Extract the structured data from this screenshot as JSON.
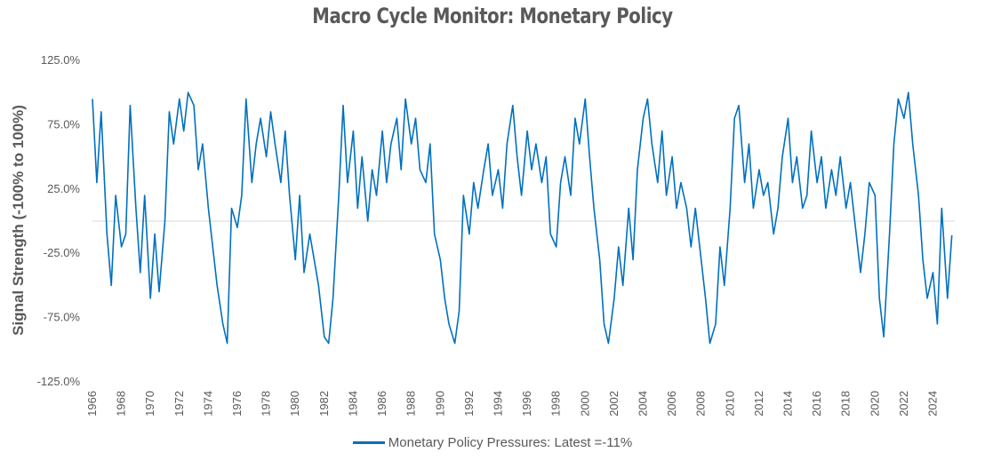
{
  "chart_data": {
    "type": "line",
    "title": "Macro Cycle Monitor: Monetary Policy",
    "ylabel": "Signal Strength (-100% to 100%)",
    "xlabel": "",
    "ylim": [
      -125,
      125
    ],
    "xlim": [
      1966,
      2025.5
    ],
    "yticks": [
      "125.0%",
      "75.0%",
      "25.0%",
      "-25.0%",
      "-75.0%",
      "-125.0%"
    ],
    "ytick_values": [
      125,
      75,
      25,
      -25,
      -75,
      -125
    ],
    "xticks": [
      "1966",
      "1968",
      "1970",
      "1972",
      "1974",
      "1976",
      "1978",
      "1980",
      "1982",
      "1984",
      "1986",
      "1988",
      "1990",
      "1992",
      "1994",
      "1996",
      "1998",
      "2000",
      "2002",
      "2004",
      "2006",
      "2008",
      "2010",
      "2012",
      "2014",
      "2016",
      "2018",
      "2020",
      "2022",
      "2024"
    ],
    "grid": false,
    "legend_position": "bottom",
    "series": [
      {
        "name": "Monetary Policy Pressures: Latest =-11%",
        "color": "#0070C0",
        "points": [
          [
            1966.0,
            95
          ],
          [
            1966.3,
            30
          ],
          [
            1966.6,
            85
          ],
          [
            1967.0,
            -10
          ],
          [
            1967.3,
            -50
          ],
          [
            1967.6,
            20
          ],
          [
            1968.0,
            -20
          ],
          [
            1968.3,
            -10
          ],
          [
            1968.6,
            90
          ],
          [
            1969.0,
            10
          ],
          [
            1969.3,
            -40
          ],
          [
            1969.6,
            20
          ],
          [
            1970.0,
            -60
          ],
          [
            1970.3,
            -10
          ],
          [
            1970.6,
            -55
          ],
          [
            1971.0,
            0
          ],
          [
            1971.3,
            85
          ],
          [
            1971.6,
            60
          ],
          [
            1972.0,
            95
          ],
          [
            1972.3,
            70
          ],
          [
            1972.6,
            100
          ],
          [
            1973.0,
            90
          ],
          [
            1973.3,
            40
          ],
          [
            1973.6,
            60
          ],
          [
            1974.0,
            10
          ],
          [
            1974.3,
            -20
          ],
          [
            1974.6,
            -50
          ],
          [
            1975.0,
            -80
          ],
          [
            1975.3,
            -95
          ],
          [
            1975.6,
            10
          ],
          [
            1976.0,
            -5
          ],
          [
            1976.3,
            20
          ],
          [
            1976.6,
            95
          ],
          [
            1977.0,
            30
          ],
          [
            1977.3,
            60
          ],
          [
            1977.6,
            80
          ],
          [
            1978.0,
            50
          ],
          [
            1978.3,
            85
          ],
          [
            1978.6,
            60
          ],
          [
            1979.0,
            30
          ],
          [
            1979.3,
            70
          ],
          [
            1979.6,
            20
          ],
          [
            1980.0,
            -30
          ],
          [
            1980.3,
            20
          ],
          [
            1980.6,
            -40
          ],
          [
            1981.0,
            -10
          ],
          [
            1981.3,
            -30
          ],
          [
            1981.6,
            -50
          ],
          [
            1982.0,
            -90
          ],
          [
            1982.3,
            -95
          ],
          [
            1982.6,
            -60
          ],
          [
            1983.0,
            20
          ],
          [
            1983.3,
            90
          ],
          [
            1983.6,
            30
          ],
          [
            1984.0,
            70
          ],
          [
            1984.3,
            10
          ],
          [
            1984.6,
            50
          ],
          [
            1985.0,
            0
          ],
          [
            1985.3,
            40
          ],
          [
            1985.6,
            20
          ],
          [
            1986.0,
            70
          ],
          [
            1986.3,
            30
          ],
          [
            1986.6,
            60
          ],
          [
            1987.0,
            80
          ],
          [
            1987.3,
            40
          ],
          [
            1987.6,
            95
          ],
          [
            1988.0,
            60
          ],
          [
            1988.3,
            80
          ],
          [
            1988.6,
            40
          ],
          [
            1989.0,
            30
          ],
          [
            1989.3,
            60
          ],
          [
            1989.6,
            -10
          ],
          [
            1990.0,
            -30
          ],
          [
            1990.3,
            -60
          ],
          [
            1990.6,
            -80
          ],
          [
            1991.0,
            -95
          ],
          [
            1991.3,
            -70
          ],
          [
            1991.6,
            20
          ],
          [
            1992.0,
            -10
          ],
          [
            1992.3,
            30
          ],
          [
            1992.6,
            10
          ],
          [
            1993.0,
            40
          ],
          [
            1993.3,
            60
          ],
          [
            1993.6,
            20
          ],
          [
            1994.0,
            40
          ],
          [
            1994.3,
            10
          ],
          [
            1994.6,
            60
          ],
          [
            1995.0,
            90
          ],
          [
            1995.3,
            50
          ],
          [
            1995.6,
            20
          ],
          [
            1996.0,
            70
          ],
          [
            1996.3,
            40
          ],
          [
            1996.6,
            60
          ],
          [
            1997.0,
            30
          ],
          [
            1997.3,
            50
          ],
          [
            1997.6,
            -10
          ],
          [
            1998.0,
            -20
          ],
          [
            1998.3,
            30
          ],
          [
            1998.6,
            50
          ],
          [
            1999.0,
            20
          ],
          [
            1999.3,
            80
          ],
          [
            1999.6,
            60
          ],
          [
            2000.0,
            95
          ],
          [
            2000.3,
            50
          ],
          [
            2000.6,
            10
          ],
          [
            2001.0,
            -30
          ],
          [
            2001.3,
            -80
          ],
          [
            2001.6,
            -95
          ],
          [
            2002.0,
            -60
          ],
          [
            2002.3,
            -20
          ],
          [
            2002.6,
            -50
          ],
          [
            2003.0,
            10
          ],
          [
            2003.3,
            -30
          ],
          [
            2003.6,
            40
          ],
          [
            2004.0,
            80
          ],
          [
            2004.3,
            95
          ],
          [
            2004.6,
            60
          ],
          [
            2005.0,
            30
          ],
          [
            2005.3,
            70
          ],
          [
            2005.6,
            20
          ],
          [
            2006.0,
            50
          ],
          [
            2006.3,
            10
          ],
          [
            2006.6,
            30
          ],
          [
            2007.0,
            10
          ],
          [
            2007.3,
            -20
          ],
          [
            2007.6,
            10
          ],
          [
            2008.0,
            -30
          ],
          [
            2008.3,
            -60
          ],
          [
            2008.6,
            -95
          ],
          [
            2009.0,
            -80
          ],
          [
            2009.3,
            -20
          ],
          [
            2009.6,
            -50
          ],
          [
            2010.0,
            10
          ],
          [
            2010.3,
            80
          ],
          [
            2010.6,
            90
          ],
          [
            2011.0,
            30
          ],
          [
            2011.3,
            60
          ],
          [
            2011.6,
            10
          ],
          [
            2012.0,
            40
          ],
          [
            2012.3,
            20
          ],
          [
            2012.6,
            30
          ],
          [
            2013.0,
            -10
          ],
          [
            2013.3,
            10
          ],
          [
            2013.6,
            50
          ],
          [
            2014.0,
            80
          ],
          [
            2014.3,
            30
          ],
          [
            2014.6,
            50
          ],
          [
            2015.0,
            10
          ],
          [
            2015.3,
            20
          ],
          [
            2015.6,
            70
          ],
          [
            2016.0,
            30
          ],
          [
            2016.3,
            50
          ],
          [
            2016.6,
            10
          ],
          [
            2017.0,
            40
          ],
          [
            2017.3,
            20
          ],
          [
            2017.6,
            50
          ],
          [
            2018.0,
            10
          ],
          [
            2018.3,
            30
          ],
          [
            2018.6,
            0
          ],
          [
            2019.0,
            -40
          ],
          [
            2019.3,
            -10
          ],
          [
            2019.6,
            30
          ],
          [
            2020.0,
            20
          ],
          [
            2020.3,
            -60
          ],
          [
            2020.6,
            -90
          ],
          [
            2021.0,
            -10
          ],
          [
            2021.3,
            60
          ],
          [
            2021.6,
            95
          ],
          [
            2022.0,
            80
          ],
          [
            2022.3,
            100
          ],
          [
            2022.6,
            60
          ],
          [
            2023.0,
            20
          ],
          [
            2023.3,
            -30
          ],
          [
            2023.6,
            -60
          ],
          [
            2024.0,
            -40
          ],
          [
            2024.3,
            -80
          ],
          [
            2024.6,
            10
          ],
          [
            2025.0,
            -60
          ],
          [
            2025.3,
            -11
          ]
        ]
      }
    ]
  }
}
